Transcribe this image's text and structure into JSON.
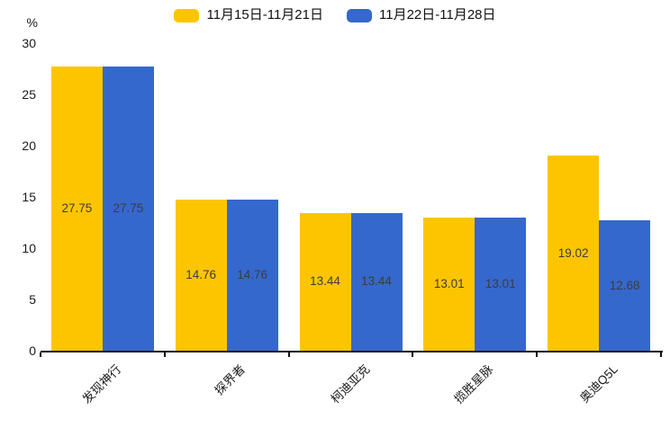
{
  "chart_data": {
    "type": "bar",
    "title": "",
    "categories": [
      "发现神行",
      "探界者",
      "柯迪亚克",
      "揽胜星脉",
      "奥迪Q5L"
    ],
    "series": [
      {
        "name": "11月15日-11月21日",
        "color": "#FDC500",
        "values": [
          27.75,
          14.76,
          13.44,
          13.01,
          19.02
        ]
      },
      {
        "name": "11月22日-11月28日",
        "color": "#3568CD",
        "values": [
          27.75,
          14.76,
          13.44,
          13.01,
          12.68
        ]
      }
    ],
    "xlabel": "",
    "ylabel": "%",
    "ylim": [
      0,
      30
    ],
    "yticks": [
      0,
      5,
      10,
      15,
      20,
      25,
      30
    ],
    "grid": false,
    "legend_position": "top",
    "value_labels_inside_bars": true,
    "x_label_rotation_deg": 45,
    "axis_color": "#111111",
    "label_text_color": "#3c3c3c",
    "background_color": "#ffffff"
  }
}
